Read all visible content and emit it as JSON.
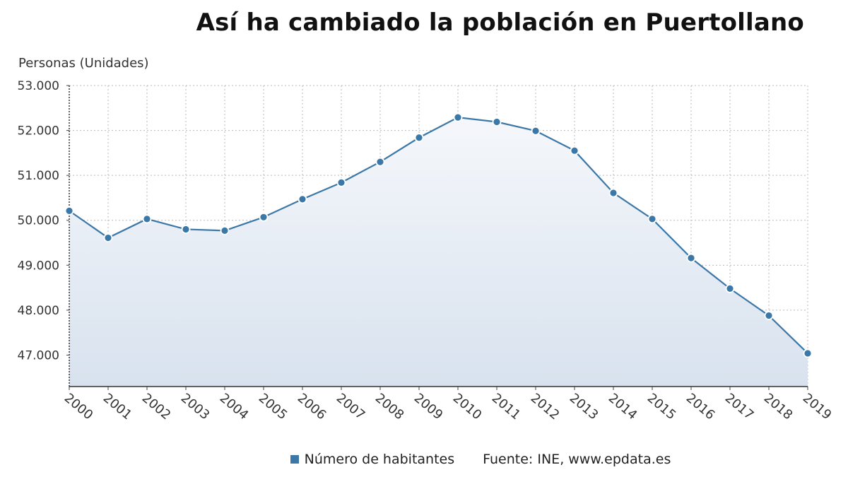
{
  "chart_data": {
    "type": "area",
    "title": "Así ha cambiado la población en Puertollano",
    "ylabel": "Personas (Unidades)",
    "xlabel": "",
    "x": [
      "2000",
      "2001",
      "2002",
      "2003",
      "2004",
      "2005",
      "2006",
      "2007",
      "2008",
      "2009",
      "2010",
      "2011",
      "2012",
      "2013",
      "2014",
      "2015",
      "2016",
      "2017",
      "2018",
      "2019"
    ],
    "series": [
      {
        "name": "Número de habitantes",
        "color": "#3b78a8",
        "values": [
          50210,
          49610,
          50030,
          49800,
          49770,
          50070,
          50470,
          50840,
          51300,
          51840,
          52290,
          52190,
          51990,
          51550,
          50610,
          50030,
          49160,
          48480,
          47880,
          47040
        ]
      }
    ],
    "ylim": [
      46300,
      53000
    ],
    "yticks": [
      47000,
      48000,
      49000,
      50000,
      51000,
      52000,
      53000
    ],
    "ytick_labels": [
      "47.000",
      "48.000",
      "49.000",
      "50.000",
      "51.000",
      "52.000",
      "53.000"
    ],
    "grid": true,
    "legend_position": "bottom"
  },
  "source": "Fuente: INE, www.epdata.es"
}
